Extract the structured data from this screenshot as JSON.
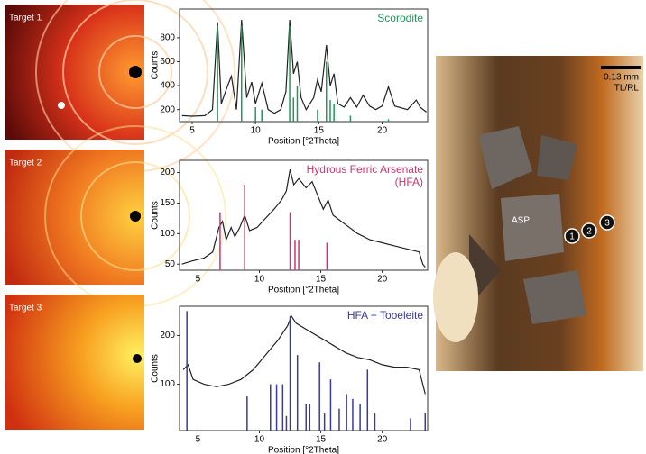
{
  "panels": {
    "targets": [
      "Target 1",
      "Target 2",
      "Target 3"
    ],
    "micrograph": {
      "scale": "0.13 mm",
      "mode": "TL/RL",
      "mineral": "ASP",
      "spots": [
        "1",
        "2",
        "3"
      ]
    }
  },
  "chart_data": [
    {
      "type": "line",
      "xlabel": "Position [°2Theta]",
      "ylabel": "Counts",
      "xlim": [
        4,
        23.6
      ],
      "ylim": [
        100,
        1040
      ],
      "xticks": [
        5,
        10,
        15,
        20
      ],
      "yticks": [
        200,
        400,
        600,
        800
      ],
      "series": [
        {
          "color": "#222222",
          "x": [
            4.2,
            5,
            6,
            6.6,
            7.0,
            7.3,
            7.8,
            8.1,
            8.5,
            8.9,
            9.3,
            9.7,
            10.0,
            10.5,
            11,
            11.5,
            12,
            12.4,
            12.7,
            13,
            13.3,
            13.6,
            14,
            14.6,
            14.9,
            15.2,
            15.6,
            15.9,
            16.2,
            16.5,
            17,
            17.5,
            18,
            18.5,
            19,
            19.5,
            20,
            20.5,
            21,
            22,
            22.7,
            23,
            23.5
          ],
          "values": [
            150,
            145,
            150,
            200,
            930,
            250,
            400,
            480,
            200,
            950,
            300,
            430,
            250,
            420,
            200,
            170,
            200,
            350,
            950,
            500,
            600,
            300,
            200,
            300,
            450,
            350,
            740,
            400,
            500,
            250,
            220,
            300,
            220,
            320,
            230,
            200,
            230,
            390,
            230,
            200,
            280,
            220,
            180
          ]
        },
        {
          "name": "Scorodite",
          "color": "#1f9a5a",
          "kind": "stick",
          "x": [
            7.0,
            8.9,
            10.0,
            10.5,
            12.7,
            13.0,
            13.3,
            14.9,
            15.6,
            15.9,
            16.2,
            17.5,
            20.5
          ],
          "values": [
            900,
            900,
            220,
            200,
            900,
            300,
            400,
            200,
            600,
            280,
            250,
            150,
            120
          ]
        }
      ]
    },
    {
      "type": "line",
      "xlabel": "Position [°2Theta]",
      "ylabel": "Counts",
      "xlim": [
        3.5,
        23.7
      ],
      "ylim": [
        40,
        220
      ],
      "xticks": [
        5,
        10,
        15,
        20
      ],
      "yticks": [
        50,
        100,
        150,
        200
      ],
      "series": [
        {
          "color": "#222222",
          "x": [
            3.7,
            4.5,
            5.5,
            6.2,
            6.7,
            7.0,
            7.3,
            7.7,
            8.0,
            8.4,
            8.8,
            9.2,
            9.8,
            10.5,
            11.2,
            11.8,
            12.2,
            12.5,
            12.8,
            13.2,
            13.8,
            14.3,
            14.8,
            15.2,
            15.6,
            16,
            17,
            18,
            19,
            20,
            21,
            22,
            23,
            23.3,
            23.5
          ],
          "values": [
            50,
            55,
            60,
            70,
            110,
            120,
            90,
            110,
            95,
            110,
            130,
            105,
            110,
            125,
            140,
            155,
            170,
            205,
            180,
            190,
            175,
            185,
            160,
            140,
            155,
            130,
            115,
            100,
            90,
            85,
            80,
            75,
            70,
            50,
            45
          ]
        },
        {
          "name": "Hydrous Ferric Arsenate (HFA)",
          "color": "#c8386e",
          "kind": "stick",
          "x": [
            6.8,
            8.8,
            12.5,
            12.9,
            13.2,
            15.5
          ],
          "values": [
            135,
            180,
            135,
            90,
            90,
            85
          ]
        }
      ]
    },
    {
      "type": "line",
      "xlabel": "Position [°2Theta]",
      "ylabel": "Counts",
      "xlim": [
        3.5,
        23.7
      ],
      "ylim": [
        5,
        260
      ],
      "xticks": [
        5,
        10,
        15,
        20
      ],
      "yticks": [
        100,
        200
      ],
      "series": [
        {
          "color": "#222222",
          "x": [
            3.8,
            4.2,
            4.6,
            5.5,
            6.5,
            7.5,
            8.5,
            9.5,
            10.5,
            11.5,
            12.3,
            12.6,
            13,
            14,
            15,
            16,
            17,
            18,
            19,
            20,
            21,
            22,
            23,
            23.5
          ],
          "values": [
            130,
            140,
            110,
            100,
            95,
            100,
            110,
            130,
            160,
            190,
            220,
            240,
            225,
            210,
            195,
            180,
            165,
            155,
            150,
            140,
            135,
            135,
            130,
            80
          ]
        },
        {
          "name": "HFA + Tooeleite",
          "color": "#3a3a9a",
          "kind": "stick",
          "x": [
            4.1,
            9.0,
            10.9,
            11.4,
            11.9,
            12.2,
            12.5,
            13.1,
            13.8,
            14.1,
            14.9,
            15.3,
            15.8,
            16.5,
            17.1,
            17.6,
            18.2,
            18.8,
            19.4,
            22.3,
            23.5
          ],
          "values": [
            250,
            75,
            100,
            100,
            100,
            35,
            240,
            160,
            60,
            60,
            145,
            40,
            110,
            50,
            80,
            70,
            60,
            130,
            40,
            30,
            40
          ]
        }
      ]
    }
  ]
}
